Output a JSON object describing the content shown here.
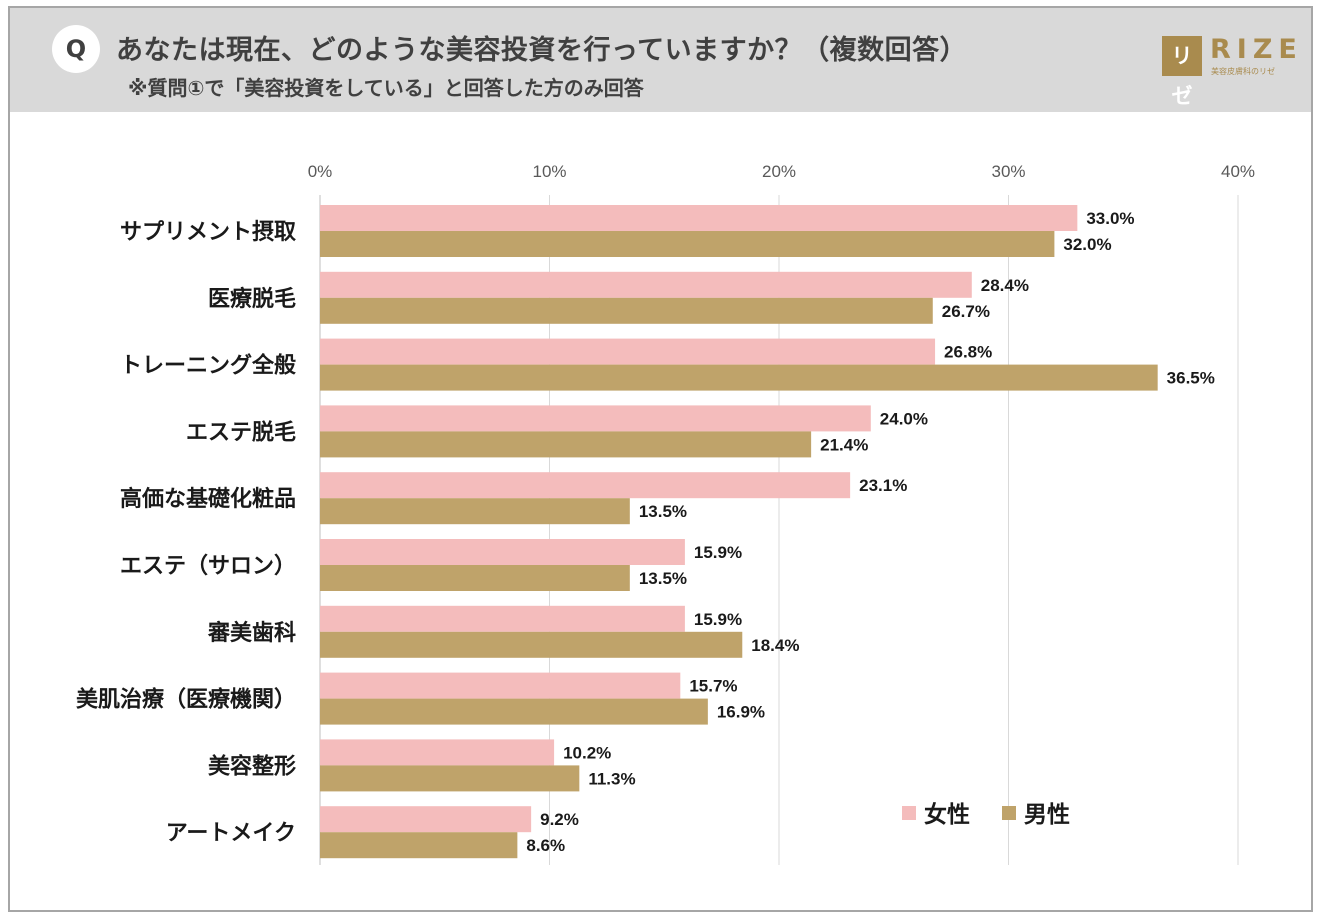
{
  "header": {
    "badge": "Q",
    "title": "あなたは現在、どのような美容投資を行っていますか？（複数回答）",
    "subtitle": "※質問①で「美容投資をしている」と回答した方のみ回答"
  },
  "logo": {
    "mark": "リゼ",
    "word": "RIZE",
    "tagline": "美容皮膚科のリゼ"
  },
  "colors": {
    "female": "#f4bcbc",
    "male": "#bfa36a",
    "grid": "#d9d9d9",
    "header_bg": "#d9d9d9"
  },
  "chart_data": {
    "type": "bar",
    "orientation": "horizontal",
    "title": "あなたは現在、どのような美容投資を行っていますか？（複数回答）",
    "categories": [
      "サプリメント摂取",
      "医療脱毛",
      "トレーニング全般",
      "エステ脱毛",
      "高価な基礎化粧品",
      "エステ（サロン）",
      "審美歯科",
      "美肌治療（医療機関）",
      "美容整形",
      "アートメイク"
    ],
    "series": [
      {
        "name": "女性",
        "values": [
          33.0,
          28.4,
          26.8,
          24.0,
          23.1,
          15.9,
          15.9,
          15.7,
          10.2,
          9.2
        ],
        "labels": [
          "33.0%",
          "28.4%",
          "26.8%",
          "24.0%",
          "23.1%",
          "15.9%",
          "15.9%",
          "15.7%",
          "10.2%",
          "9.2%"
        ]
      },
      {
        "name": "男性",
        "values": [
          32.0,
          26.7,
          36.5,
          21.4,
          13.5,
          13.5,
          18.4,
          16.9,
          11.3,
          8.6
        ],
        "labels": [
          "32.0%",
          "26.7%",
          "36.5%",
          "21.4%",
          "13.5%",
          "13.5%",
          "18.4%",
          "16.9%",
          "11.3%",
          "8.6%"
        ]
      }
    ],
    "xlim": [
      0,
      40
    ],
    "ticks": [
      0,
      10,
      20,
      30,
      40
    ],
    "tick_labels": [
      "0%",
      "10%",
      "20%",
      "30%",
      "40%"
    ],
    "grid": true,
    "legend_position": "bottom-right",
    "xlabel": "",
    "ylabel": ""
  }
}
